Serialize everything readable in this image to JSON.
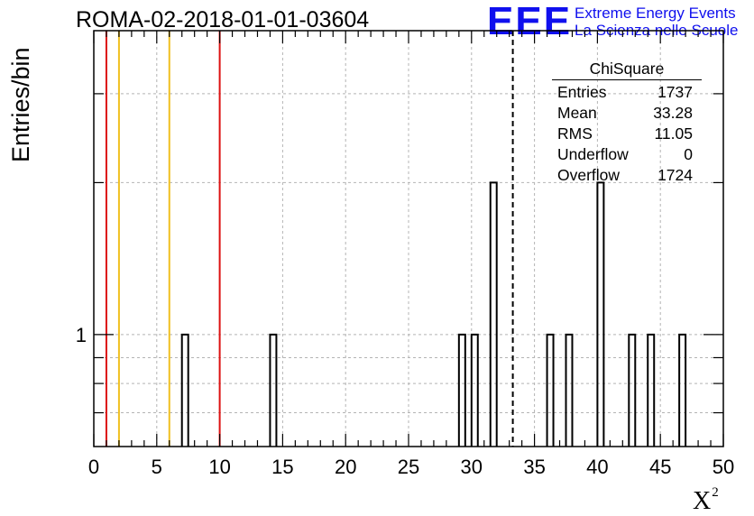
{
  "header": {
    "run_title": "ROMA-02-2018-01-01-03604",
    "logo_text": "EEE",
    "logo_line1": "Extreme Energy Events",
    "logo_line2": "La Scienza nelle Scuole",
    "logo_color": "#1010ee"
  },
  "axes": {
    "ylabel": "Entries/bin",
    "xlabel_base": "X",
    "xlabel_sup": "2"
  },
  "stats": {
    "name": "ChiSquare",
    "rows": [
      {
        "label": "Entries",
        "value": "1737"
      },
      {
        "label": "Mean",
        "value": "33.28"
      },
      {
        "label": "RMS",
        "value": "11.05"
      },
      {
        "label": "Underflow",
        "value": "0"
      },
      {
        "label": "Overflow",
        "value": "1724"
      }
    ]
  },
  "chart_data": {
    "type": "bar",
    "title": "ROMA-02-2018-01-01-03604",
    "xlabel": "X²",
    "ylabel": "Entries/bin",
    "xlim": [
      0,
      50
    ],
    "ylim": [
      0.6,
      4.0
    ],
    "yscale": "log",
    "bin_width": 0.5,
    "x_ticks": [
      "0",
      "5",
      "10",
      "15",
      "20",
      "25",
      "30",
      "35",
      "40",
      "45",
      "50"
    ],
    "y_tick_labels": [
      "1"
    ],
    "grid": true,
    "bins": [
      {
        "x": 7.0,
        "count": 1
      },
      {
        "x": 14.0,
        "count": 1
      },
      {
        "x": 29.0,
        "count": 1
      },
      {
        "x": 30.0,
        "count": 1
      },
      {
        "x": 31.5,
        "count": 2
      },
      {
        "x": 36.0,
        "count": 1
      },
      {
        "x": 37.5,
        "count": 1
      },
      {
        "x": 40.0,
        "count": 2
      },
      {
        "x": 42.5,
        "count": 1
      },
      {
        "x": 44.0,
        "count": 1
      },
      {
        "x": 46.5,
        "count": 1
      }
    ],
    "vertical_lines": [
      {
        "x": 1.0,
        "color": "#dd1111",
        "style": "solid"
      },
      {
        "x": 2.0,
        "color": "#f0c020",
        "style": "solid"
      },
      {
        "x": 6.0,
        "color": "#f0c020",
        "style": "solid"
      },
      {
        "x": 10.0,
        "color": "#dd1111",
        "style": "solid"
      },
      {
        "x": 33.28,
        "color": "#000000",
        "style": "dashed"
      }
    ]
  }
}
